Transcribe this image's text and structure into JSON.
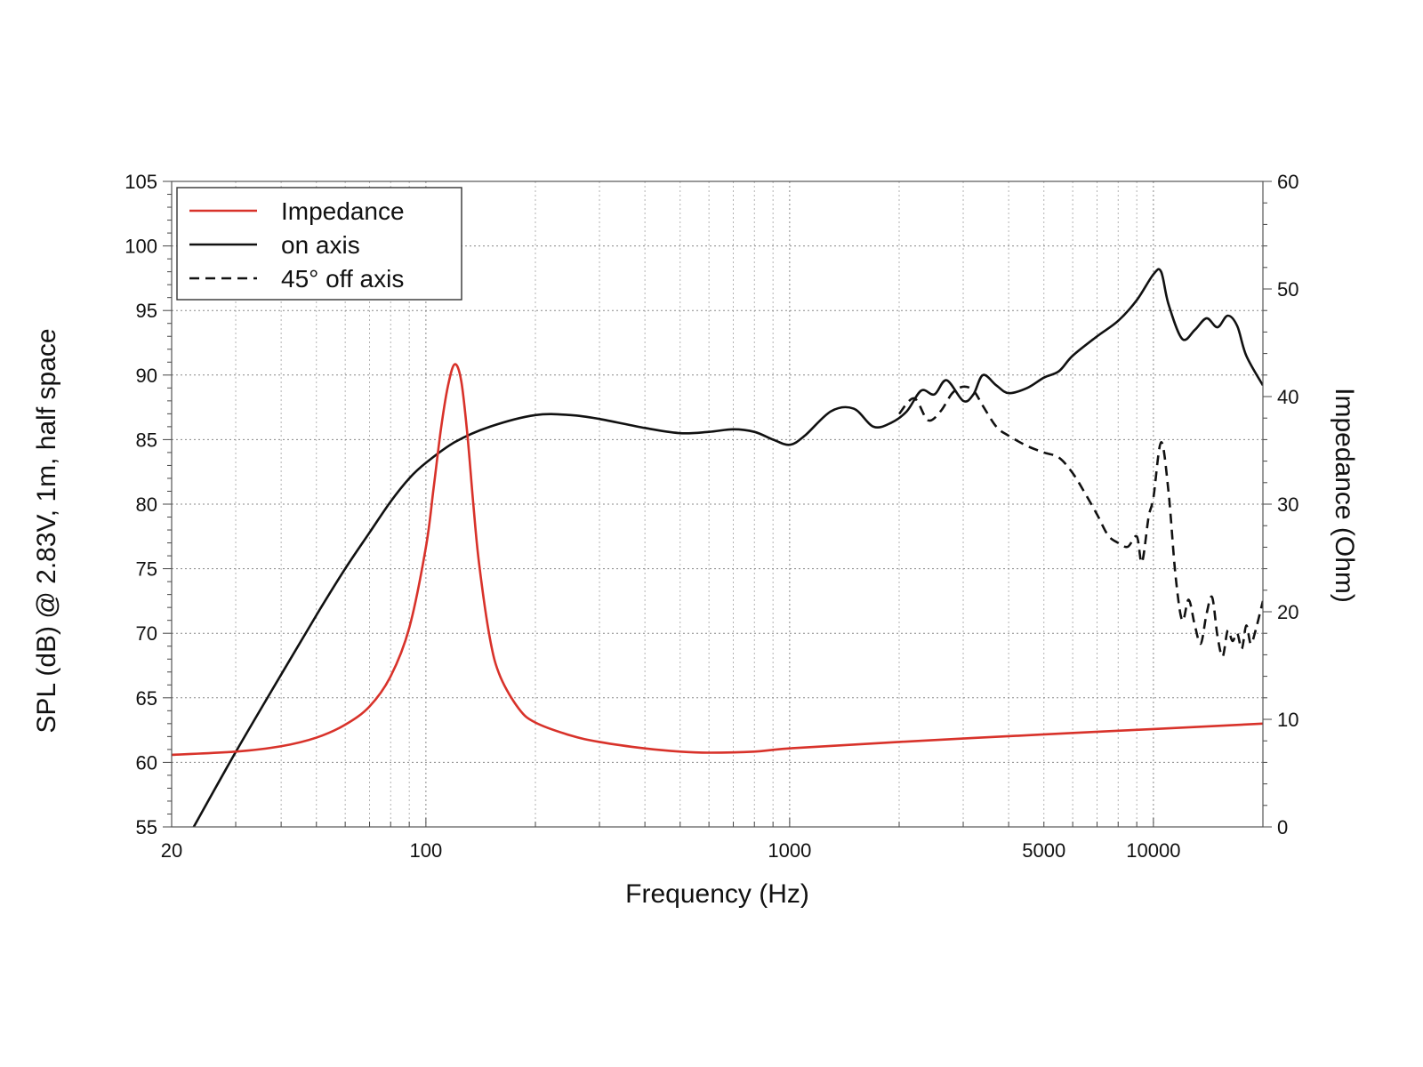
{
  "chart_data": {
    "type": "line",
    "title": "",
    "xlabel": "Frequency (Hz)",
    "ylabel": "SPL (dB) @ 2.83V, 1m, half space",
    "y2label": "Impedance (Ohm)",
    "x_scale": "log",
    "xlim": [
      20,
      20000
    ],
    "ylim": [
      55,
      105
    ],
    "y2lim": [
      0,
      60
    ],
    "grid": true,
    "legend_position": "top-left",
    "x_ticks": [
      20,
      100,
      1000,
      5000,
      10000
    ],
    "x_tick_labels": [
      "20",
      "100",
      "1000",
      "5000",
      "10000"
    ],
    "y_ticks": [
      55,
      60,
      65,
      70,
      75,
      80,
      85,
      90,
      95,
      100,
      105
    ],
    "y_tick_labels": [
      "55",
      "60",
      "65",
      "70",
      "75",
      "80",
      "85",
      "90",
      "95",
      "100",
      "105"
    ],
    "y2_ticks": [
      0,
      10,
      20,
      30,
      40,
      50,
      60
    ],
    "y2_tick_labels": [
      "0",
      "10",
      "20",
      "30",
      "40",
      "50",
      "60"
    ],
    "series": [
      {
        "name": "Impedance",
        "axis": "right",
        "color": "#d8322a",
        "dash": "solid",
        "x": [
          20,
          30,
          40,
          50,
          60,
          70,
          80,
          90,
          100,
          105,
          110,
          115,
          120,
          125,
          130,
          135,
          140,
          150,
          160,
          180,
          200,
          250,
          300,
          400,
          500,
          600,
          800,
          1000,
          2000,
          5000,
          10000,
          20000
        ],
        "y": [
          6.7,
          7.0,
          7.5,
          8.3,
          9.5,
          11.2,
          14.0,
          18.5,
          26.0,
          31.5,
          37.0,
          41.0,
          43.0,
          41.5,
          36.5,
          30.0,
          24.5,
          17.5,
          14.0,
          11.0,
          9.7,
          8.5,
          7.9,
          7.3,
          7.0,
          6.9,
          7.0,
          7.3,
          7.9,
          8.6,
          9.1,
          9.6
        ]
      },
      {
        "name": "on axis",
        "axis": "left",
        "color": "#111111",
        "dash": "solid",
        "x": [
          23,
          30,
          40,
          50,
          60,
          70,
          80,
          90,
          100,
          120,
          150,
          200,
          250,
          300,
          400,
          500,
          600,
          700,
          800,
          900,
          1000,
          1100,
          1300,
          1500,
          1700,
          1900,
          2100,
          2300,
          2500,
          2700,
          3000,
          3200,
          3400,
          3700,
          4000,
          4500,
          5000,
          5500,
          6000,
          7000,
          8000,
          9000,
          10000,
          10500,
          11000,
          12000,
          13000,
          14000,
          15000,
          16000,
          17000,
          18000,
          20000
        ],
        "y": [
          55.0,
          60.8,
          66.8,
          71.4,
          75.0,
          77.8,
          80.2,
          82.0,
          83.2,
          84.8,
          86.0,
          86.9,
          86.9,
          86.6,
          85.9,
          85.5,
          85.6,
          85.8,
          85.6,
          85.0,
          84.6,
          85.3,
          87.2,
          87.4,
          86.0,
          86.3,
          87.2,
          88.8,
          88.5,
          89.6,
          88.0,
          88.5,
          90.0,
          89.2,
          88.6,
          89.0,
          89.8,
          90.3,
          91.5,
          93.0,
          94.2,
          95.8,
          97.8,
          98.0,
          95.5,
          92.8,
          93.5,
          94.4,
          93.7,
          94.6,
          93.8,
          91.5,
          89.2
        ]
      },
      {
        "name": "45° off axis",
        "axis": "left",
        "color": "#111111",
        "dash": "dashed",
        "x": [
          2000,
          2200,
          2400,
          2600,
          2800,
          3000,
          3200,
          3400,
          3700,
          4000,
          4500,
          5000,
          5500,
          6000,
          6500,
          7000,
          7500,
          8000,
          8500,
          9000,
          9300,
          9700,
          10000,
          10500,
          11000,
          11500,
          12000,
          12500,
          13000,
          13500,
          14000,
          14500,
          15000,
          15500,
          16000,
          16500,
          17000,
          17500,
          18000,
          18500,
          19000,
          20000
        ],
        "y": [
          87.0,
          88.2,
          86.5,
          87.2,
          88.6,
          89.1,
          88.8,
          87.6,
          86.0,
          85.3,
          84.5,
          84.0,
          83.6,
          82.4,
          80.8,
          79.2,
          77.6,
          77.0,
          76.7,
          77.5,
          75.5,
          79.0,
          80.5,
          84.8,
          81.0,
          74.5,
          71.0,
          72.6,
          70.6,
          69.2,
          71.5,
          72.8,
          69.8,
          68.2,
          70.2,
          69.4,
          70.0,
          68.8,
          70.6,
          69.2,
          70.0,
          72.5
        ]
      }
    ]
  }
}
